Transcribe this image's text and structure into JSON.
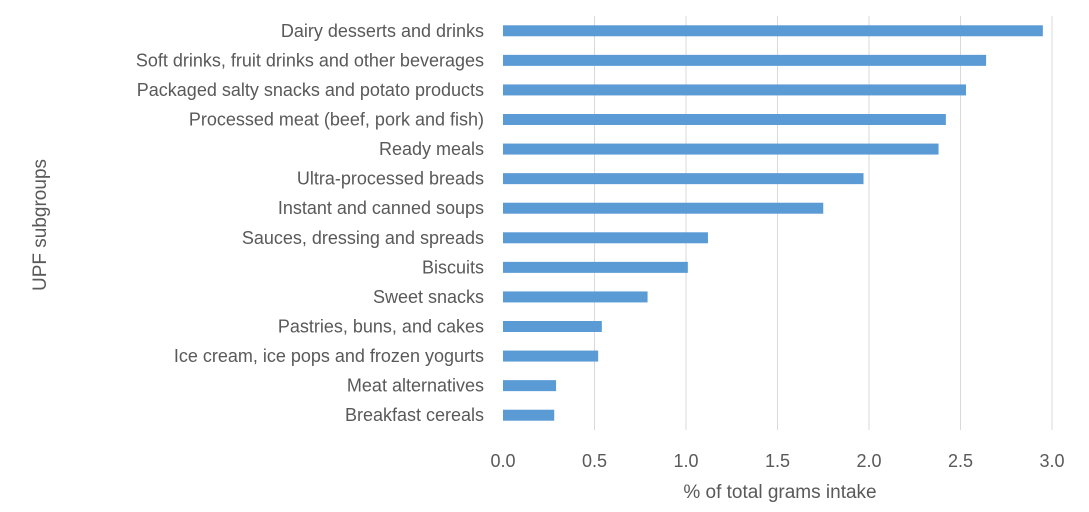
{
  "chart_data": {
    "type": "bar",
    "orientation": "horizontal",
    "categories": [
      "Dairy desserts and drinks",
      "Soft drinks, fruit drinks and other beverages",
      "Packaged salty snacks and potato products",
      "Processed meat (beef, pork and fish)",
      "Ready meals",
      "Ultra-processed breads",
      "Instant and canned soups",
      "Sauces, dressing and spreads",
      "Biscuits",
      "Sweet snacks",
      "Pastries, buns, and cakes",
      "Ice cream, ice pops and frozen yogurts",
      "Meat alternatives",
      "Breakfast cereals"
    ],
    "values": [
      2.95,
      2.64,
      2.53,
      2.42,
      2.38,
      1.97,
      1.75,
      1.12,
      1.01,
      0.79,
      0.54,
      0.52,
      0.29,
      0.28
    ],
    "xlabel": "% of total grams intake",
    "ylabel": "UPF subgroups",
    "xlim": [
      0,
      3.0
    ],
    "xticks": [
      "0.0",
      "0.5",
      "1.0",
      "1.5",
      "2.0",
      "2.5",
      "3.0"
    ],
    "grid": "vertical",
    "legend": "none",
    "bar_color": "#5b9bd5"
  }
}
